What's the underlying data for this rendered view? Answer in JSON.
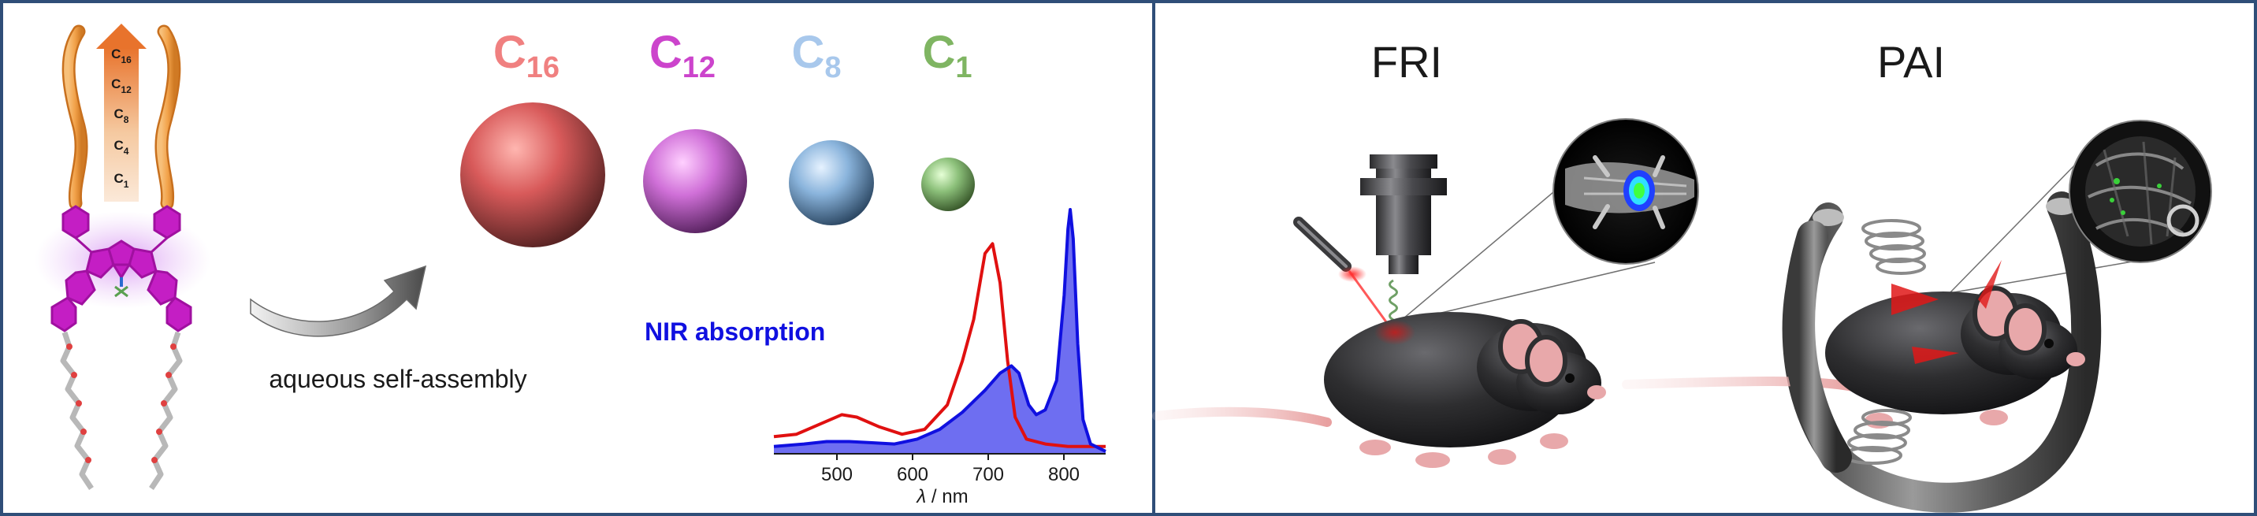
{
  "chain_ladder": {
    "c16": {
      "base": "C",
      "sub": "16"
    },
    "c12": {
      "base": "C",
      "sub": "12"
    },
    "c8": {
      "base": "C",
      "sub": "8"
    },
    "c4": {
      "base": "C",
      "sub": "4"
    },
    "c1": {
      "base": "C",
      "sub": "1"
    }
  },
  "assembly_arrow_label": "aqueous self-assembly",
  "nanoparticles": [
    {
      "base": "C",
      "sub": "16",
      "color": "#f08080",
      "sphere": "#d85a5a"
    },
    {
      "base": "C",
      "sub": "12",
      "color": "#cc44cc",
      "sphere": "#d070d8"
    },
    {
      "base": "C",
      "sub": "8",
      "color": "#a8c8ec",
      "sphere": "#8ab4dc"
    },
    {
      "base": "C",
      "sub": "1",
      "color": "#7fb562",
      "sphere": "#8cc07a"
    }
  ],
  "absorption_plot": {
    "label": "NIR absorption",
    "label_color": "#1010e0",
    "ticks": [
      "500",
      "600",
      "700",
      "800"
    ],
    "xlabel_symbol": "λ",
    "xlabel_unit": " / nm"
  },
  "chart_data": {
    "type": "line",
    "title": "NIR absorption",
    "xlabel": "λ / nm",
    "ylabel": "",
    "xlim": [
      410,
      850
    ],
    "x_ticks": [
      500,
      600,
      700,
      800
    ],
    "series": [
      {
        "color": "#e01010",
        "fill": false,
        "points": [
          [
            410,
            0.07
          ],
          [
            440,
            0.08
          ],
          [
            470,
            0.12
          ],
          [
            500,
            0.16
          ],
          [
            520,
            0.15
          ],
          [
            550,
            0.11
          ],
          [
            580,
            0.08
          ],
          [
            610,
            0.1
          ],
          [
            640,
            0.2
          ],
          [
            660,
            0.38
          ],
          [
            675,
            0.55
          ],
          [
            690,
            0.82
          ],
          [
            700,
            0.86
          ],
          [
            710,
            0.7
          ],
          [
            720,
            0.38
          ],
          [
            730,
            0.15
          ],
          [
            745,
            0.06
          ],
          [
            770,
            0.04
          ],
          [
            800,
            0.03
          ],
          [
            850,
            0.03
          ]
        ]
      },
      {
        "color": "#1010e0",
        "fill": true,
        "fill_color": "#5555ee",
        "points": [
          [
            410,
            0.03
          ],
          [
            450,
            0.04
          ],
          [
            480,
            0.05
          ],
          [
            510,
            0.05
          ],
          [
            540,
            0.045
          ],
          [
            570,
            0.04
          ],
          [
            600,
            0.06
          ],
          [
            630,
            0.1
          ],
          [
            660,
            0.17
          ],
          [
            690,
            0.26
          ],
          [
            710,
            0.33
          ],
          [
            725,
            0.36
          ],
          [
            735,
            0.33
          ],
          [
            748,
            0.2
          ],
          [
            758,
            0.16
          ],
          [
            770,
            0.18
          ],
          [
            785,
            0.3
          ],
          [
            795,
            0.65
          ],
          [
            800,
            0.92
          ],
          [
            803,
            1.0
          ],
          [
            807,
            0.88
          ],
          [
            813,
            0.45
          ],
          [
            820,
            0.14
          ],
          [
            830,
            0.04
          ],
          [
            850,
            0.01
          ]
        ]
      }
    ]
  },
  "imaging": {
    "fri_label": "FRI",
    "pai_label": "PAI"
  },
  "colors": {
    "frame_border": "#2f4e78",
    "arm_orange": "#f2a24a",
    "bodipy_magenta": "#c41ec4",
    "mouse_body": "#2e2e30"
  }
}
